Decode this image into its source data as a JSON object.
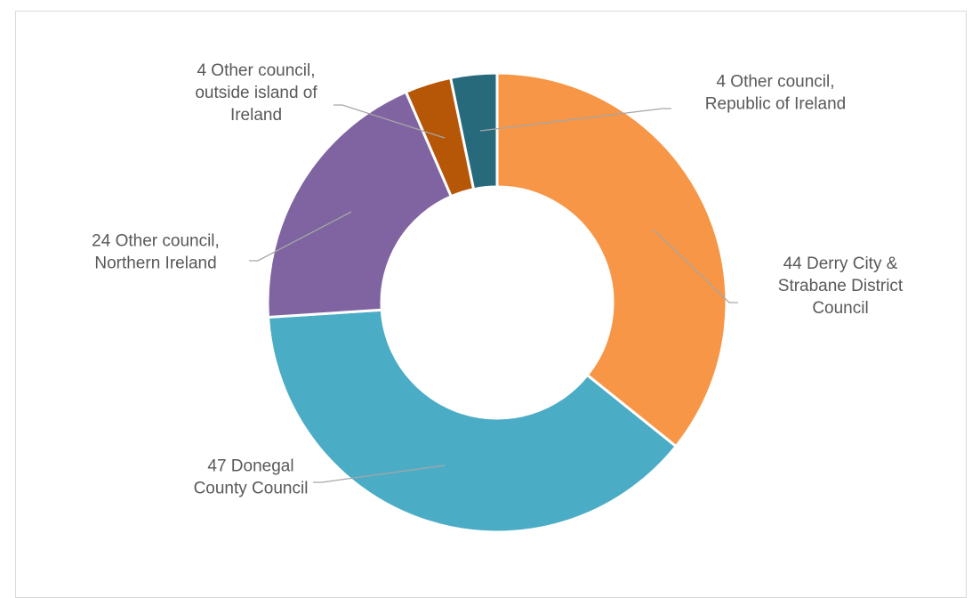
{
  "chart_data": {
    "type": "pie",
    "donut": true,
    "title": "",
    "legend": "none",
    "slices": [
      {
        "label_lines": [
          "44 Derry City &",
          "Strabane District",
          "Council"
        ],
        "value": 44,
        "color": "#F79646"
      },
      {
        "label_lines": [
          "47 Donegal",
          "County Council"
        ],
        "value": 47,
        "color": "#4BACC6"
      },
      {
        "label_lines": [
          "24 Other council,",
          "Northern Ireland"
        ],
        "value": 24,
        "color": "#8064A2"
      },
      {
        "label_lines": [
          "4 Other council,",
          "outside island of",
          "Ireland"
        ],
        "value": 4,
        "color": "#B65708"
      },
      {
        "label_lines": [
          "4 Other council,",
          "Republic of Ireland"
        ],
        "value": 4,
        "color": "#276A7C"
      }
    ]
  }
}
